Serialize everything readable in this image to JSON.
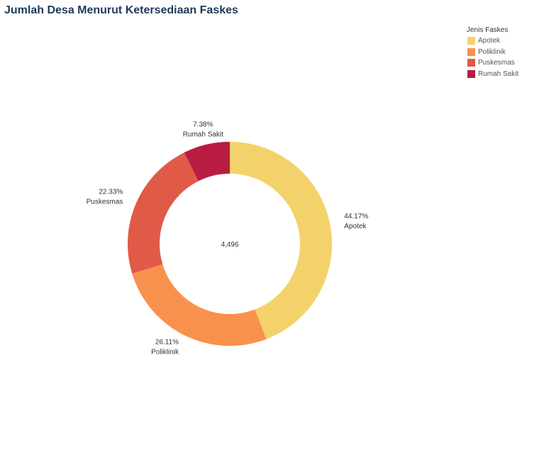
{
  "chart_data": {
    "type": "pie",
    "title": "Jumlah Desa Menurut Ketersediaan Faskes",
    "legend_title": "Jenis Faskes",
    "legend_position": "top-right",
    "center_value": "4,496",
    "categories": [
      "Apotek",
      "Poliklinik",
      "Puskesmas",
      "Rumah Sakit"
    ],
    "values": [
      44.17,
      26.11,
      22.33,
      7.38
    ],
    "value_labels": [
      "44.17%",
      "26.11%",
      "22.33%",
      "7.38%"
    ],
    "colors": [
      "#f3d26b",
      "#f9914e",
      "#e05a48",
      "#b81c40"
    ]
  }
}
